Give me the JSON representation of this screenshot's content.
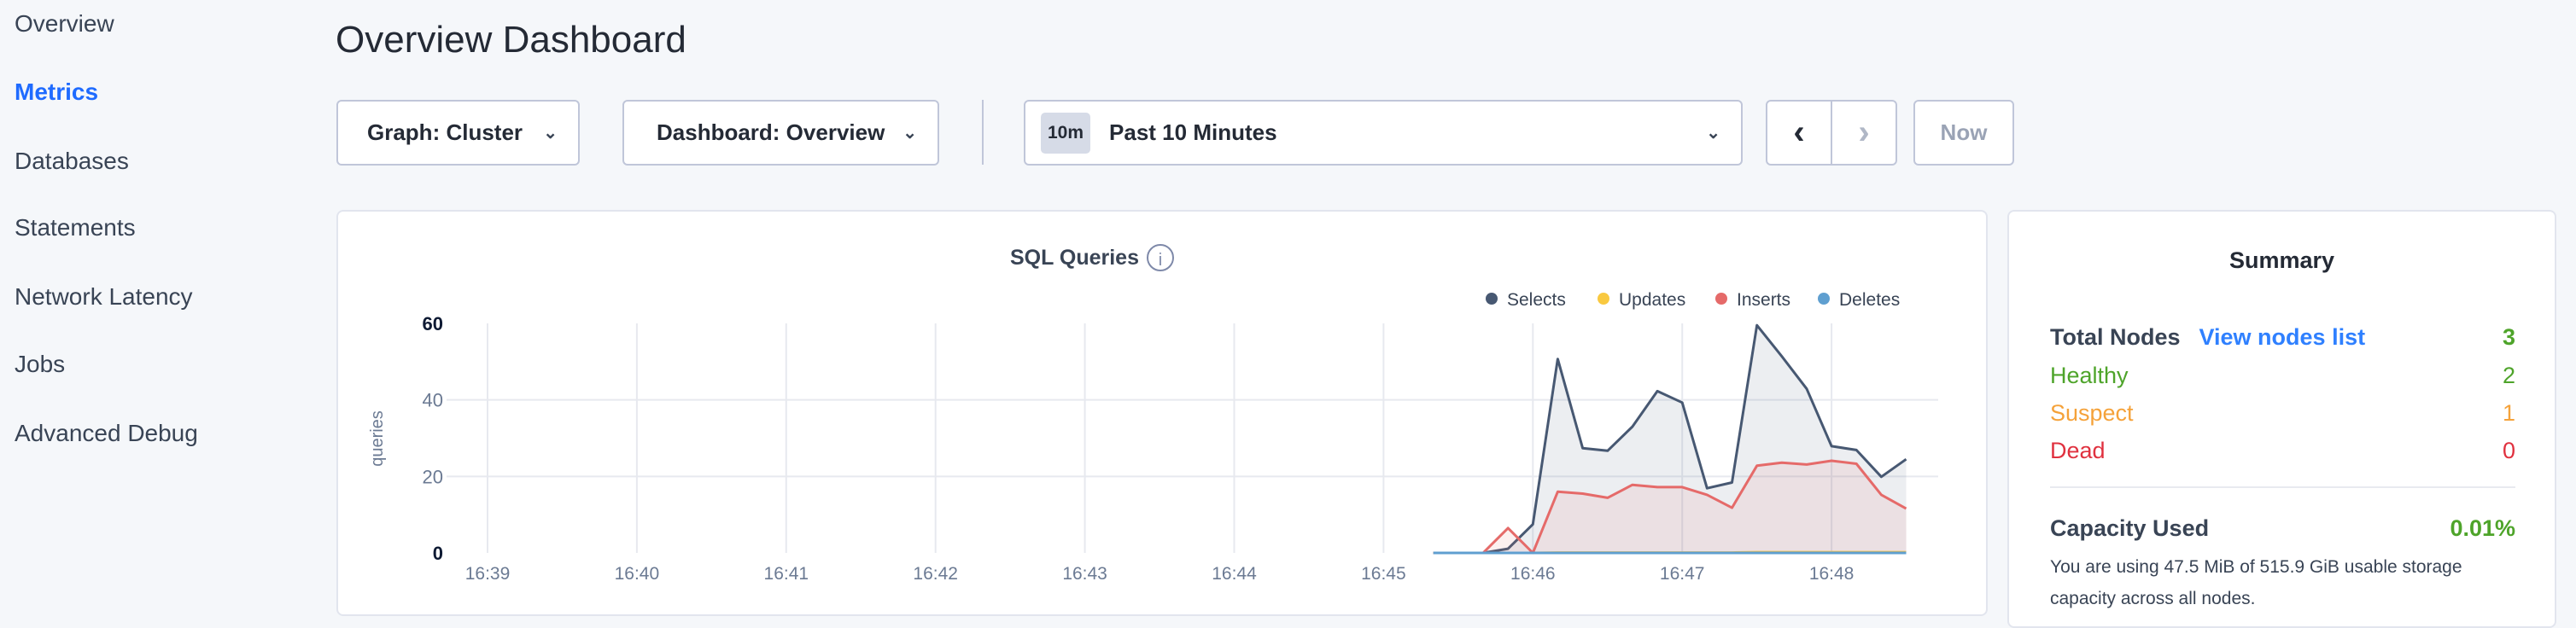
{
  "sidebar": {
    "items": [
      {
        "label": "Overview",
        "active": false
      },
      {
        "label": "Metrics",
        "active": true
      },
      {
        "label": "Databases",
        "active": false
      },
      {
        "label": "Statements",
        "active": false
      },
      {
        "label": "Network Latency",
        "active": false
      },
      {
        "label": "Jobs",
        "active": false
      },
      {
        "label": "Advanced Debug",
        "active": false
      }
    ]
  },
  "header": {
    "title": "Overview Dashboard"
  },
  "toolbar": {
    "graph_select": "Graph: Cluster",
    "dashboard_select": "Dashboard: Overview",
    "time_badge": "10m",
    "time_range": "Past 10 Minutes",
    "prev_icon": "chevron-left-icon",
    "next_icon": "chevron-right-icon",
    "now_label": "Now"
  },
  "chart_data": {
    "type": "area",
    "title": "SQL Queries",
    "ylabel": "queries",
    "xlabel": "",
    "ylim": [
      0,
      60
    ],
    "yticks": [
      "0",
      "20",
      "40",
      "60"
    ],
    "xticks": [
      "16:39",
      "16:40",
      "16:41",
      "16:42",
      "16:43",
      "16:44",
      "16:45",
      "16:46",
      "16:47",
      "16:48"
    ],
    "grid": true,
    "legend_placement": "top-right",
    "x": [
      "16:45:20",
      "16:45:30",
      "16:45:40",
      "16:45:50",
      "16:46:00",
      "16:46:10",
      "16:46:20",
      "16:46:30",
      "16:46:40",
      "16:46:50",
      "16:47:00",
      "16:47:10",
      "16:47:20",
      "16:47:30",
      "16:47:40",
      "16:47:50",
      "16:48:00",
      "16:48:10",
      "16:48:20",
      "16:48:30"
    ],
    "series": [
      {
        "name": "Selects",
        "color": "#475872",
        "values": [
          0,
          0,
          0,
          1.1,
          7.5,
          50.7,
          27.4,
          26.7,
          33,
          42.3,
          39.3,
          16.9,
          18.4,
          59.5,
          51.4,
          42.9,
          27.9,
          26.9,
          19.9,
          24.5
        ]
      },
      {
        "name": "Updates",
        "color": "#f9c940",
        "values": [
          0,
          0,
          0,
          0,
          0,
          0.1,
          0.1,
          0.1,
          0.1,
          0.1,
          0.1,
          0.1,
          0.1,
          0.2,
          0.2,
          0.2,
          0.2,
          0.2,
          0.2,
          0.2
        ]
      },
      {
        "name": "Inserts",
        "color": "#e56a69",
        "values": [
          0,
          0,
          0,
          6.5,
          0,
          16,
          15.5,
          14.4,
          17.8,
          17.2,
          17.2,
          15.2,
          11.8,
          22.8,
          23.6,
          23.1,
          24.1,
          23.3,
          15.2,
          11.6
        ]
      },
      {
        "name": "Deletes",
        "color": "#5f9fd0",
        "values": [
          0,
          0,
          0,
          0,
          0,
          0,
          0,
          0,
          0,
          0,
          0,
          0,
          0,
          0,
          0,
          0,
          0,
          0,
          0,
          0
        ]
      }
    ]
  },
  "summary": {
    "title": "Summary",
    "total_nodes_label": "Total Nodes",
    "view_nodes_link": "View nodes list",
    "total_nodes": "3",
    "healthy_label": "Healthy",
    "healthy": "2",
    "suspect_label": "Suspect",
    "suspect": "1",
    "dead_label": "Dead",
    "dead": "0",
    "capacity_label": "Capacity Used",
    "capacity_value": "0.01%",
    "capacity_text": "You are using 47.5 MiB of 515.9 GiB usable storage capacity across all nodes.",
    "colors": {
      "healthy": "#4ea42a",
      "suspect": "#f5a23a",
      "dead": "#e0313f",
      "link": "#2f80ff"
    }
  }
}
